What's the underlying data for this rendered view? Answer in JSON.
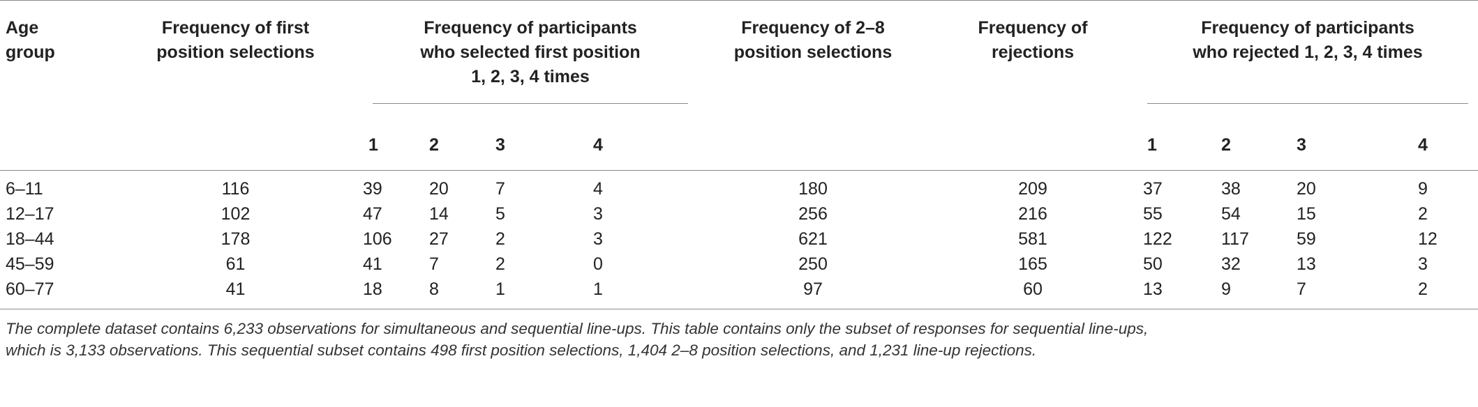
{
  "table": {
    "headers": {
      "age_group": [
        "Age",
        "group"
      ],
      "first_position": [
        "Frequency of first",
        "position selections"
      ],
      "selected_first": [
        "Frequency of participants",
        "who selected first position",
        "1, 2, 3, 4 times"
      ],
      "mid_position": [
        "Frequency of 2–8",
        "position selections"
      ],
      "rejections": [
        "Frequency of",
        "rejections"
      ],
      "rejected": [
        "Frequency of participants",
        "who rejected 1, 2, 3, 4 times"
      ],
      "sub_selected": [
        "1",
        "2",
        "3",
        "4"
      ],
      "sub_rejected": [
        "1",
        "2",
        "3",
        "4"
      ]
    },
    "rows": [
      {
        "age": "6–11",
        "first": "116",
        "sel": [
          "39",
          "20",
          "7",
          "4"
        ],
        "mid": "180",
        "rej": "209",
        "rejn": [
          "37",
          "38",
          "20",
          "9"
        ]
      },
      {
        "age": "12–17",
        "first": "102",
        "sel": [
          "47",
          "14",
          "5",
          "3"
        ],
        "mid": "256",
        "rej": "216",
        "rejn": [
          "55",
          "54",
          "15",
          "2"
        ]
      },
      {
        "age": "18–44",
        "first": "178",
        "sel": [
          "106",
          "27",
          "2",
          "3"
        ],
        "mid": "621",
        "rej": "581",
        "rejn": [
          "122",
          "117",
          "59",
          "12"
        ]
      },
      {
        "age": "45–59",
        "first": "61",
        "sel": [
          "41",
          "7",
          "2",
          "0"
        ],
        "mid": "250",
        "rej": "165",
        "rejn": [
          "50",
          "32",
          "13",
          "3"
        ]
      },
      {
        "age": "60–77",
        "first": "41",
        "sel": [
          "18",
          "8",
          "1",
          "1"
        ],
        "mid": "97",
        "rej": "60",
        "rejn": [
          "13",
          "9",
          "7",
          "2"
        ]
      }
    ]
  },
  "footnote": [
    "The complete dataset contains 6,233 observations for simultaneous and sequential line-ups. This table contains only the subset of responses for sequential line-ups,",
    "which is 3,133 observations. This sequential subset contains 498 first position selections, 1,404 2–8 position selections, and 1,231 line-up rejections."
  ]
}
